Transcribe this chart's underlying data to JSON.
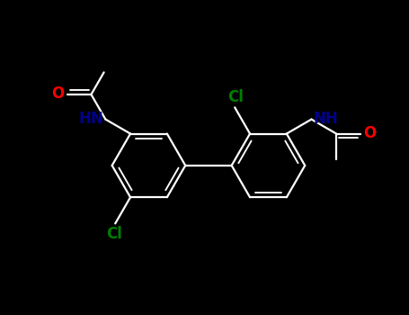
{
  "bg_color": "#000000",
  "bond_color": "#ffffff",
  "N_color": "#00008b",
  "O_color": "#ff0000",
  "Cl_color": "#008000",
  "lw": 1.6,
  "fs": 12,
  "r": 0.46,
  "r1cx": 1.55,
  "r1cy": 1.8,
  "r2cx": 3.05,
  "r2cy": 1.8,
  "xlim": [
    -0.3,
    4.8
  ],
  "ylim": [
    0.7,
    3.1
  ]
}
